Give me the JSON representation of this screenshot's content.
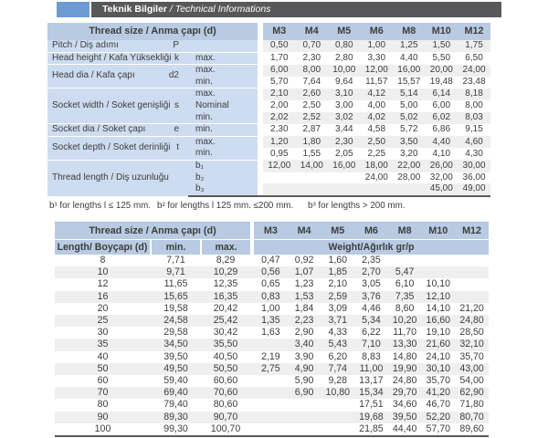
{
  "title": {
    "name_bold": "Teknik Bilgiler",
    "name_italic": " / Technical Informations"
  },
  "colors": {
    "accent_blue": "#6d9bd1",
    "bar_dark": "#58585a",
    "header_blue": "#b8cbe3",
    "panel_blue": "#cddcf0",
    "stripe_gray": "#efefef",
    "border_dark": "#595959",
    "text": "#3d3d3d"
  },
  "top_table": {
    "corner_label": "Thread size / Anma çapı (d)",
    "columns": [
      "M3",
      "M4",
      "M5",
      "M6",
      "M8",
      "M10",
      "M12"
    ],
    "groups": [
      {
        "label": "Pitch / Diş adımı",
        "symbol": "P",
        "rows": [
          {
            "sub": "",
            "values": [
              "0,50",
              "0,70",
              "0,80",
              "1,00",
              "1,25",
              "1,50",
              "1,75"
            ]
          }
        ]
      },
      {
        "label": "Head height / Kafa Yüksekliği",
        "symbol": "k",
        "rows": [
          {
            "sub": "max.",
            "values": [
              "1,70",
              "2,30",
              "2,80",
              "3,30",
              "4,40",
              "5,50",
              "6,50"
            ]
          }
        ]
      },
      {
        "label": "Head dia / Kafa çapı",
        "symbol": "d2",
        "rows": [
          {
            "sub": "max.",
            "values": [
              "6,00",
              "8,00",
              "10,00",
              "12,00",
              "16,00",
              "20,00",
              "24,00"
            ]
          },
          {
            "sub": "min.",
            "values": [
              "5,70",
              "7,64",
              "9,64",
              "11,57",
              "15,57",
              "19,48",
              "23,48"
            ]
          }
        ]
      },
      {
        "label": "Socket width / Soket genişliği",
        "symbol": "s",
        "rows": [
          {
            "sub": "max.",
            "values": [
              "2,10",
              "2,60",
              "3,10",
              "4,12",
              "5,14",
              "6,14",
              "8,18"
            ]
          },
          {
            "sub": "Nominal",
            "values": [
              "2,00",
              "2,50",
              "3,00",
              "4,00",
              "5,00",
              "6,00",
              "8,00"
            ]
          },
          {
            "sub": "min.",
            "values": [
              "2,02",
              "2,52",
              "3,02",
              "4,02",
              "5,02",
              "6,02",
              "8,03"
            ]
          }
        ]
      },
      {
        "label": "Socket dia / Soket çapı",
        "symbol": "e",
        "rows": [
          {
            "sub": "min.",
            "values": [
              "2,30",
              "2,87",
              "3,44",
              "4,58",
              "5,72",
              "6,86",
              "9,15"
            ]
          }
        ]
      },
      {
        "label": "Socket depth / Soket derinliği",
        "symbol": "t",
        "rows": [
          {
            "sub": "max.",
            "values": [
              "1,20",
              "1,80",
              "2,30",
              "2,50",
              "3,50",
              "4,40",
              "4,60"
            ]
          },
          {
            "sub": "min.",
            "values": [
              "0,95",
              "1,55",
              "2,05",
              "2,25",
              "3,20",
              "4,10",
              "4,30"
            ]
          }
        ]
      },
      {
        "label": "Thread length / Diş uzunluğu",
        "symbol": "",
        "rows": [
          {
            "sub": "b₁",
            "values": [
              "12,00",
              "14,00",
              "16,00",
              "18,00",
              "22,00",
              "26,00",
              "30,00"
            ]
          },
          {
            "sub": "b₂",
            "values": [
              "",
              "",
              "",
              "24,00",
              "28,00",
              "32,00",
              "36,00"
            ]
          },
          {
            "sub": "b₃",
            "values": [
              "",
              "",
              "",
              "",
              "",
              "45,00",
              "49,00"
            ]
          }
        ]
      }
    ]
  },
  "footnotes": [
    "b¹ for lengths  l ≤ 125 mm.",
    "b² for lengths l 125 mm. ≤200 mm.",
    "b³ for lengths > 200 mm."
  ],
  "bottom_table": {
    "corner_label": "Thread size / Anma çapı (d)",
    "columns": [
      "M3",
      "M4",
      "M5",
      "M6",
      "M8",
      "M10",
      "M12"
    ],
    "length_label": "Length/ Boyçapı (d)",
    "min_label": "min.",
    "max_label": "max.",
    "weight_label": "Weight/Ağırlık gr/p",
    "rows": [
      {
        "length": "8",
        "min": "7,71",
        "max": "8,29",
        "weights": [
          "0,47",
          "0,92",
          "1,60",
          "2,35",
          "",
          "",
          ""
        ]
      },
      {
        "length": "10",
        "min": "9,71",
        "max": "10,29",
        "weights": [
          "0,56",
          "1,07",
          "1,85",
          "2,70",
          "5,47",
          "",
          ""
        ]
      },
      {
        "length": "12",
        "min": "11,65",
        "max": "12,35",
        "weights": [
          "0,65",
          "1,23",
          "2,10",
          "3,05",
          "6,10",
          "10,10",
          ""
        ]
      },
      {
        "length": "16",
        "min": "15,65",
        "max": "16,35",
        "weights": [
          "0,83",
          "1,53",
          "2,59",
          "3,76",
          "7,35",
          "12,10",
          ""
        ]
      },
      {
        "length": "20",
        "min": "19,58",
        "max": "20,42",
        "weights": [
          "1,00",
          "1,84",
          "3,09",
          "4,46",
          "8,60",
          "14,10",
          "21,20"
        ]
      },
      {
        "length": "25",
        "min": "24,58",
        "max": "25,42",
        "weights": [
          "1,35",
          "2,23",
          "3,71",
          "5,34",
          "10,20",
          "16,60",
          "24,80"
        ]
      },
      {
        "length": "30",
        "min": "29,58",
        "max": "30,42",
        "weights": [
          "1,63",
          "2,90",
          "4,33",
          "6,22",
          "11,70",
          "19,10",
          "28,50"
        ]
      },
      {
        "length": "35",
        "min": "34,50",
        "max": "35,50",
        "weights": [
          "",
          "3,40",
          "5,43",
          "7,10",
          "13,30",
          "21,60",
          "32,10"
        ]
      },
      {
        "length": "40",
        "min": "39,50",
        "max": "40,50",
        "weights": [
          "2,19",
          "3,90",
          "6,20",
          "8,83",
          "14,80",
          "24,10",
          "35,70"
        ]
      },
      {
        "length": "50",
        "min": "49,50",
        "max": "50,50",
        "weights": [
          "2,75",
          "4,90",
          "7,74",
          "11,00",
          "19,90",
          "30,10",
          "43,00"
        ]
      },
      {
        "length": "60",
        "min": "59,40",
        "max": "60,60",
        "weights": [
          "",
          "5,90",
          "9,28",
          "13,17",
          "24,80",
          "35,70",
          "54,00"
        ]
      },
      {
        "length": "70",
        "min": "69,40",
        "max": "70,60",
        "weights": [
          "",
          "6,90",
          "10,80",
          "15,34",
          "29,70",
          "41,20",
          "62,90"
        ]
      },
      {
        "length": "80",
        "min": "79,40",
        "max": "80,60",
        "weights": [
          "",
          "",
          "",
          "17,51",
          "34,60",
          "46,70",
          "71,80"
        ]
      },
      {
        "length": "90",
        "min": "89,30",
        "max": "90,70",
        "weights": [
          "",
          "",
          "",
          "19,68",
          "39,50",
          "52,20",
          "80,70"
        ]
      },
      {
        "length": "100",
        "min": "99,30",
        "max": "100,70",
        "weights": [
          "",
          "",
          "",
          "21,85",
          "44,40",
          "57,70",
          "89,60"
        ]
      }
    ]
  }
}
